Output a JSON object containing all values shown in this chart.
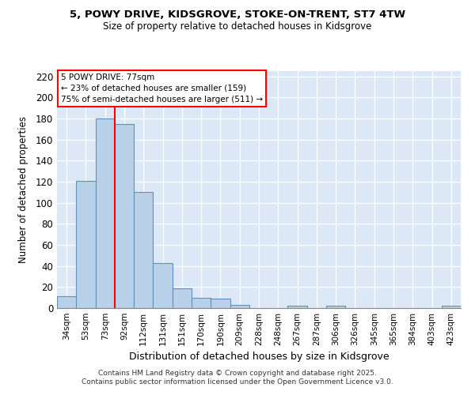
{
  "title1": "5, POWY DRIVE, KIDSGROVE, STOKE-ON-TRENT, ST7 4TW",
  "title2": "Size of property relative to detached houses in Kidsgrove",
  "xlabel": "Distribution of detached houses by size in Kidsgrove",
  "ylabel": "Number of detached properties",
  "categories": [
    "34sqm",
    "53sqm",
    "73sqm",
    "92sqm",
    "112sqm",
    "131sqm",
    "151sqm",
    "170sqm",
    "190sqm",
    "209sqm",
    "228sqm",
    "248sqm",
    "267sqm",
    "287sqm",
    "306sqm",
    "326sqm",
    "345sqm",
    "365sqm",
    "384sqm",
    "403sqm",
    "423sqm"
  ],
  "values": [
    11,
    121,
    180,
    175,
    110,
    43,
    19,
    10,
    9,
    3,
    0,
    0,
    2,
    0,
    2,
    0,
    0,
    0,
    0,
    0,
    2
  ],
  "bar_color": "#b8d0e8",
  "bar_edge_color": "#6090c0",
  "red_line_index": 2,
  "annotation_line1": "5 POWY DRIVE: 77sqm",
  "annotation_line2": "← 23% of detached houses are smaller (159)",
  "annotation_line3": "75% of semi-detached houses are larger (511) →",
  "ylim": [
    0,
    225
  ],
  "yticks": [
    0,
    20,
    40,
    60,
    80,
    100,
    120,
    140,
    160,
    180,
    200,
    220
  ],
  "background_color": "#dce8f5",
  "footer1": "Contains HM Land Registry data © Crown copyright and database right 2025.",
  "footer2": "Contains public sector information licensed under the Open Government Licence v3.0."
}
